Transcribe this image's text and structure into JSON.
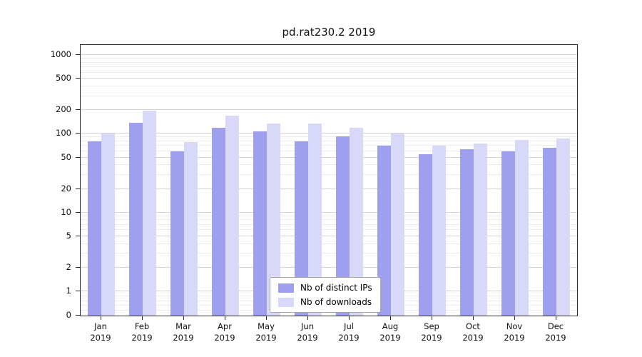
{
  "chart_data": {
    "type": "bar",
    "title": "pd.rat230.2 2019",
    "categories": [
      "Jan 2019",
      "Feb 2019",
      "Mar 2019",
      "Apr 2019",
      "May 2019",
      "Jun 2019",
      "Jul 2019",
      "Aug 2019",
      "Sep 2019",
      "Oct 2019",
      "Nov 2019",
      "Dec 2019"
    ],
    "series": [
      {
        "name": "Nb of distinct IPs",
        "color": "#9f9ff0",
        "values": [
          80,
          138,
          60,
          118,
          108,
          80,
          92,
          70,
          55,
          64,
          60,
          67
        ]
      },
      {
        "name": "Nb of downloads",
        "color": "#d8d8f8",
        "values": [
          100,
          198,
          78,
          170,
          135,
          135,
          120,
          100,
          70,
          76,
          84,
          88
        ]
      }
    ],
    "y_scale": "symlog",
    "y_ticks": [
      0,
      1,
      2,
      5,
      10,
      20,
      50,
      100,
      200,
      500,
      1000
    ],
    "ylim": [
      0,
      1300
    ],
    "xlabel": "",
    "ylabel": "",
    "grid": true,
    "legend_position": "lower center",
    "grid_major_color": "#d4d4d4",
    "grid_minor_color": "#ececec",
    "axis_color": "#2b2b2b"
  }
}
